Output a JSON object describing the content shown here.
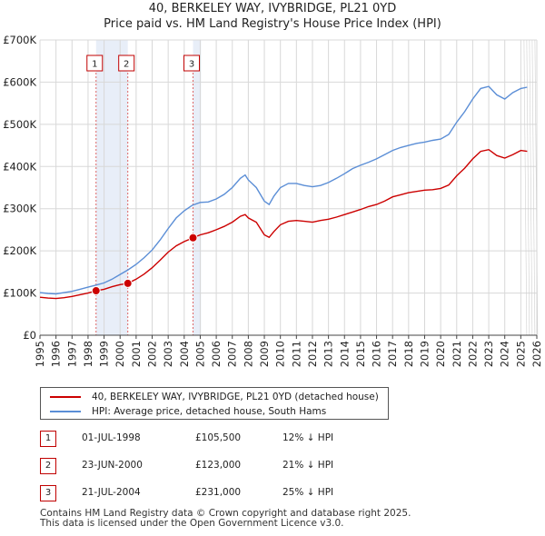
{
  "chart_data": {
    "type": "line",
    "title": "40, BERKELEY WAY, IVYBRIDGE, PL21 0YD",
    "subtitle": "Price paid vs. HM Land Registry's House Price Index (HPI)",
    "xlabel": "",
    "ylabel": "",
    "xlim": [
      1995,
      2026
    ],
    "ylim": [
      0,
      700000
    ],
    "grid": true,
    "x_ticks": [
      "1995",
      "1996",
      "1997",
      "1998",
      "1999",
      "2000",
      "2001",
      "2002",
      "2003",
      "2004",
      "2005",
      "2006",
      "2007",
      "2008",
      "2009",
      "2010",
      "2011",
      "2012",
      "2013",
      "2014",
      "2015",
      "2016",
      "2017",
      "2018",
      "2019",
      "2020",
      "2021",
      "2022",
      "2023",
      "2024",
      "2025",
      "2026"
    ],
    "y_ticks": [
      {
        "value": 0,
        "label": "£0"
      },
      {
        "value": 100000,
        "label": "£100K"
      },
      {
        "value": 200000,
        "label": "£200K"
      },
      {
        "value": 300000,
        "label": "£300K"
      },
      {
        "value": 400000,
        "label": "£400K"
      },
      {
        "value": 500000,
        "label": "£500K"
      },
      {
        "value": 600000,
        "label": "£600K"
      },
      {
        "value": 700000,
        "label": "£700K"
      }
    ],
    "shaded_spans": [
      [
        1998.5,
        2000.48
      ],
      [
        2004.55,
        2005.05
      ]
    ],
    "forecast_start": 2025.2,
    "series": [
      {
        "name": "40, BERKELEY WAY, IVYBRIDGE, PL21 0YD (detached house)",
        "color": "#cc0000",
        "points": [
          [
            1995,
            90000
          ],
          [
            1995.5,
            88000
          ],
          [
            1996,
            87000
          ],
          [
            1996.5,
            89000
          ],
          [
            1997,
            92000
          ],
          [
            1997.5,
            96000
          ],
          [
            1998,
            100000
          ],
          [
            1998.5,
            105500
          ],
          [
            1999,
            109000
          ],
          [
            1999.5,
            115000
          ],
          [
            2000,
            120000
          ],
          [
            2000.48,
            123000
          ],
          [
            2001,
            133000
          ],
          [
            2001.5,
            145000
          ],
          [
            2002,
            160000
          ],
          [
            2002.5,
            178000
          ],
          [
            2003,
            197000
          ],
          [
            2003.5,
            212000
          ],
          [
            2004,
            222000
          ],
          [
            2004.55,
            231000
          ],
          [
            2005,
            238000
          ],
          [
            2005.5,
            243000
          ],
          [
            2006,
            250000
          ],
          [
            2006.5,
            258000
          ],
          [
            2007,
            268000
          ],
          [
            2007.5,
            282000
          ],
          [
            2007.8,
            286000
          ],
          [
            2008,
            278000
          ],
          [
            2008.5,
            268000
          ],
          [
            2009,
            238000
          ],
          [
            2009.3,
            232000
          ],
          [
            2009.6,
            246000
          ],
          [
            2010,
            262000
          ],
          [
            2010.5,
            270000
          ],
          [
            2011,
            272000
          ],
          [
            2011.5,
            270000
          ],
          [
            2012,
            268000
          ],
          [
            2012.5,
            272000
          ],
          [
            2013,
            275000
          ],
          [
            2013.5,
            280000
          ],
          [
            2014,
            286000
          ],
          [
            2014.5,
            292000
          ],
          [
            2015,
            298000
          ],
          [
            2015.5,
            305000
          ],
          [
            2016,
            310000
          ],
          [
            2016.5,
            318000
          ],
          [
            2017,
            328000
          ],
          [
            2017.5,
            333000
          ],
          [
            2018,
            338000
          ],
          [
            2018.5,
            341000
          ],
          [
            2019,
            344000
          ],
          [
            2019.5,
            345000
          ],
          [
            2020,
            348000
          ],
          [
            2020.5,
            356000
          ],
          [
            2021,
            378000
          ],
          [
            2021.5,
            396000
          ],
          [
            2022,
            418000
          ],
          [
            2022.5,
            436000
          ],
          [
            2023,
            440000
          ],
          [
            2023.5,
            426000
          ],
          [
            2024,
            420000
          ],
          [
            2024.5,
            428000
          ],
          [
            2025,
            438000
          ],
          [
            2025.4,
            436000
          ]
        ]
      },
      {
        "name": "HPI: Average price, detached house, South Hams",
        "color": "#5b8ed6",
        "points": [
          [
            1995,
            101000
          ],
          [
            1995.5,
            99000
          ],
          [
            1996,
            98000
          ],
          [
            1996.5,
            101000
          ],
          [
            1997,
            104000
          ],
          [
            1997.5,
            109000
          ],
          [
            1998,
            114000
          ],
          [
            1998.5,
            119000
          ],
          [
            1999,
            124000
          ],
          [
            1999.5,
            133000
          ],
          [
            2000,
            144000
          ],
          [
            2000.5,
            155000
          ],
          [
            2001,
            168000
          ],
          [
            2001.5,
            184000
          ],
          [
            2002,
            202000
          ],
          [
            2002.5,
            226000
          ],
          [
            2003,
            253000
          ],
          [
            2003.5,
            278000
          ],
          [
            2004,
            295000
          ],
          [
            2004.5,
            308000
          ],
          [
            2005,
            315000
          ],
          [
            2005.5,
            316000
          ],
          [
            2006,
            323000
          ],
          [
            2006.5,
            334000
          ],
          [
            2007,
            350000
          ],
          [
            2007.5,
            372000
          ],
          [
            2007.8,
            380000
          ],
          [
            2008,
            368000
          ],
          [
            2008.5,
            350000
          ],
          [
            2009,
            318000
          ],
          [
            2009.3,
            310000
          ],
          [
            2009.6,
            330000
          ],
          [
            2010,
            350000
          ],
          [
            2010.5,
            360000
          ],
          [
            2011,
            360000
          ],
          [
            2011.5,
            355000
          ],
          [
            2012,
            352000
          ],
          [
            2012.5,
            355000
          ],
          [
            2013,
            362000
          ],
          [
            2013.5,
            372000
          ],
          [
            2014,
            383000
          ],
          [
            2014.5,
            395000
          ],
          [
            2015,
            403000
          ],
          [
            2015.5,
            410000
          ],
          [
            2016,
            418000
          ],
          [
            2016.5,
            428000
          ],
          [
            2017,
            438000
          ],
          [
            2017.5,
            445000
          ],
          [
            2018,
            450000
          ],
          [
            2018.5,
            455000
          ],
          [
            2019,
            458000
          ],
          [
            2019.5,
            462000
          ],
          [
            2020,
            465000
          ],
          [
            2020.5,
            476000
          ],
          [
            2021,
            505000
          ],
          [
            2021.5,
            530000
          ],
          [
            2022,
            560000
          ],
          [
            2022.5,
            585000
          ],
          [
            2023,
            590000
          ],
          [
            2023.5,
            570000
          ],
          [
            2024,
            560000
          ],
          [
            2024.5,
            575000
          ],
          [
            2025,
            585000
          ],
          [
            2025.4,
            588000
          ]
        ]
      }
    ],
    "markers": [
      {
        "label": "1",
        "x": 1998.5,
        "y": 105500
      },
      {
        "label": "2",
        "x": 2000.48,
        "y": 123000
      },
      {
        "label": "3",
        "x": 2004.55,
        "y": 231000
      }
    ]
  },
  "legend": {
    "property": "40, BERKELEY WAY, IVYBRIDGE, PL21 0YD (detached house)",
    "hpi": "HPI: Average price, detached house, South Hams"
  },
  "sales": [
    {
      "num": "1",
      "date": "01-JUL-1998",
      "price": "£105,500",
      "hpi": "12% ↓ HPI"
    },
    {
      "num": "2",
      "date": "23-JUN-2000",
      "price": "£123,000",
      "hpi": "21% ↓ HPI"
    },
    {
      "num": "3",
      "date": "21-JUL-2004",
      "price": "£231,000",
      "hpi": "25% ↓ HPI"
    }
  ],
  "footer": {
    "line1": "Contains HM Land Registry data © Crown copyright and database right 2025.",
    "line2": "This data is licensed under the Open Government Licence v3.0."
  },
  "colors": {
    "property": "#cc0000",
    "hpi": "#5b8ed6",
    "shade": "#e8eef8",
    "grid": "#d8d8d8"
  }
}
